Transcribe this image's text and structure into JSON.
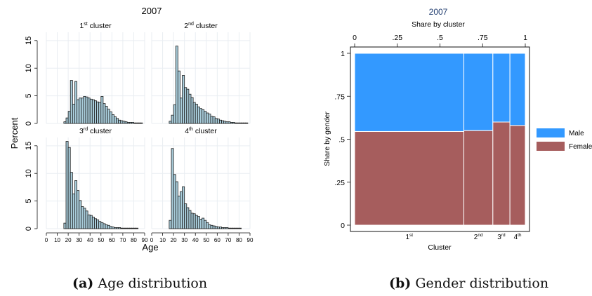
{
  "figure": {
    "caption_a_label": "(a)",
    "caption_a_text": "Age distribution",
    "caption_b_label": "(b)",
    "caption_b_text": "Gender distribution"
  },
  "chart_data": [
    {
      "type": "bar",
      "title": "2007",
      "xlabel": "Age",
      "ylabel": "Percent",
      "xticks": [
        0,
        10,
        20,
        30,
        40,
        50,
        60,
        70,
        80,
        90
      ],
      "yticks": [
        0,
        5,
        10,
        15
      ],
      "xlim": [
        0,
        90
      ],
      "ylim": [
        0,
        16.5
      ],
      "bin_width": 2,
      "bin_starts": [
        16,
        18,
        20,
        22,
        24,
        26,
        28,
        30,
        32,
        34,
        36,
        38,
        40,
        42,
        44,
        46,
        48,
        50,
        52,
        54,
        56,
        58,
        60,
        62,
        64,
        66,
        68,
        70,
        72,
        74,
        76,
        78,
        80,
        82,
        84,
        86
      ],
      "colors": {
        "bar_fill": "#a9cddb",
        "bar_stroke": "#1a1a1a"
      },
      "panels": [
        {
          "title_prefix": "1",
          "title_sup": "st",
          "title_suffix": " cluster",
          "values": [
            0.3,
            1.0,
            2.2,
            7.8,
            3.5,
            7.6,
            4.3,
            4.6,
            4.6,
            4.9,
            4.8,
            4.6,
            4.4,
            4.3,
            4.1,
            3.9,
            3.8,
            4.9,
            3.6,
            3.1,
            2.6,
            2.1,
            1.6,
            1.2,
            0.9,
            0.6,
            0.5,
            0.4,
            0.3,
            0.2,
            0.2,
            0.2,
            0.1,
            0.1,
            0.1,
            0.1
          ]
        },
        {
          "title_prefix": "2",
          "title_sup": "nd",
          "title_suffix": " cluster",
          "values": [
            0.4,
            1.5,
            3.4,
            14.0,
            9.5,
            4.6,
            8.7,
            6.5,
            6.2,
            5.3,
            4.7,
            3.8,
            3.5,
            3.0,
            2.7,
            2.5,
            2.2,
            1.9,
            1.7,
            1.3,
            1.2,
            0.9,
            0.8,
            0.6,
            0.5,
            0.4,
            0.3,
            0.3,
            0.2,
            0.2,
            0.1,
            0.1,
            0.1,
            0.1,
            0.1,
            0.1
          ]
        },
        {
          "title_prefix": "3",
          "title_sup": "rd",
          "title_suffix": " cluster",
          "values": [
            1.0,
            15.8,
            14.7,
            10.2,
            6.3,
            8.7,
            6.9,
            5.1,
            4.0,
            3.7,
            3.2,
            2.5,
            2.4,
            2.1,
            1.8,
            1.6,
            1.3,
            1.1,
            0.9,
            0.7,
            0.6,
            0.4,
            0.3,
            0.2,
            0.2,
            0.2,
            0.1,
            0.1,
            0.1,
            0.1,
            0.1,
            0.1,
            0.1,
            0.1,
            0.0,
            0.0
          ]
        },
        {
          "title_prefix": "4",
          "title_sup": "th",
          "title_suffix": " cluster",
          "values": [
            1.5,
            14.5,
            9.8,
            8.5,
            5.9,
            6.7,
            7.6,
            4.5,
            3.8,
            3.3,
            2.8,
            2.7,
            2.4,
            2.2,
            1.7,
            1.9,
            1.5,
            1.1,
            0.7,
            0.6,
            0.5,
            0.4,
            0.3,
            0.3,
            0.2,
            0.2,
            0.2,
            0.1,
            0.1,
            0.1,
            0.1,
            0.1,
            0.1,
            0.0,
            0.0,
            0.0
          ]
        }
      ]
    },
    {
      "type": "mosaic",
      "title": "2007",
      "top_axis_label": "Share by cluster",
      "top_ticks": [
        0,
        0.25,
        0.5,
        0.75,
        1
      ],
      "top_tick_labels": [
        "0",
        ".25",
        ".5",
        ".75",
        "1"
      ],
      "ylabel": "Share by gender",
      "y_ticks": [
        0,
        0.25,
        0.5,
        0.75,
        1
      ],
      "y_tick_labels": [
        "0",
        ".25",
        ".5",
        ".75",
        "1"
      ],
      "xlabel": "Cluster",
      "legend_position": "right",
      "series": [
        {
          "name": "Male",
          "color": "#3399ff"
        },
        {
          "name": "Female",
          "color": "#a65d5d"
        }
      ],
      "clusters": [
        {
          "label_prefix": "1",
          "label_sup": "st",
          "share": 0.64,
          "female_share": 0.545
        },
        {
          "label_prefix": "2",
          "label_sup": "nd",
          "share": 0.17,
          "female_share": 0.55
        },
        {
          "label_prefix": "3",
          "label_sup": "rd",
          "share": 0.1,
          "female_share": 0.6
        },
        {
          "label_prefix": "4",
          "label_sup": "th",
          "share": 0.09,
          "female_share": 0.58
        }
      ]
    }
  ]
}
